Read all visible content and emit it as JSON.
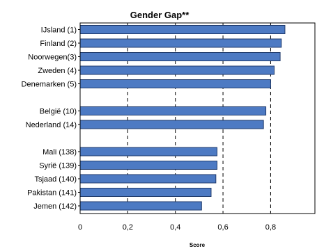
{
  "chart_data": {
    "type": "bar",
    "orientation": "horizontal",
    "title": "Gender Gap**",
    "xlabel": "Score",
    "ylabel": "",
    "xlim": [
      0,
      1
    ],
    "xticks": [
      "0",
      "0,2",
      "0,4",
      "0,6",
      "0,8"
    ],
    "grid": "dashed vertical at 0,2 0,4 0,6 0,8",
    "bar_color": "#4d7ac3",
    "bar_edge_color": "#1f3a6b",
    "categories": [
      "IJsland (1)",
      "Finland (2)",
      "Noorwegen(3)",
      "Zweden (4)",
      "Denemarken (5)",
      "België (10)",
      "Nederland (14)",
      "Mali (138)",
      "Syrië (139)",
      "Tsjaad (140)",
      "Pakistan (141)",
      "Jemen (142)"
    ],
    "groups": [
      0,
      0,
      0,
      0,
      0,
      1,
      1,
      2,
      2,
      2,
      2,
      2
    ],
    "values": [
      0.86,
      0.845,
      0.84,
      0.815,
      0.8,
      0.78,
      0.77,
      0.575,
      0.575,
      0.57,
      0.55,
      0.51
    ]
  }
}
